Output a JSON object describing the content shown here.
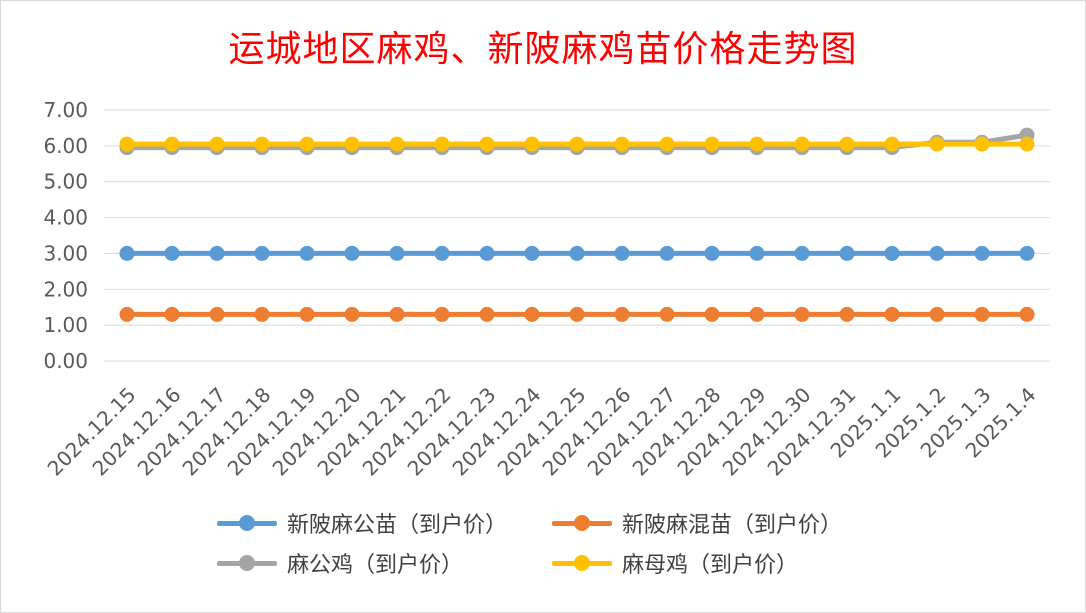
{
  "chart_data": {
    "type": "line",
    "title": "运城地区麻鸡、新陂麻鸡苗价格走势图",
    "categories": [
      "2024.12.15",
      "2024.12.16",
      "2024.12.17",
      "2024.12.18",
      "2024.12.19",
      "2024.12.20",
      "2024.12.21",
      "2024.12.22",
      "2024.12.23",
      "2024.12.24",
      "2024.12.25",
      "2024.12.26",
      "2024.12.27",
      "2024.12.28",
      "2024.12.29",
      "2024.12.30",
      "2024.12.31",
      "2025.1.1",
      "2025.1.2",
      "2025.1.3",
      "2025.1.4"
    ],
    "ylim": [
      0,
      7
    ],
    "ytick_values": [
      0,
      1,
      2,
      3,
      4,
      5,
      6,
      7
    ],
    "ytick_labels": [
      "0.00",
      "1.00",
      "2.00",
      "3.00",
      "4.00",
      "5.00",
      "6.00",
      "7.00"
    ],
    "grid": true,
    "legend_position": "bottom",
    "series": [
      {
        "name": "新陂麻公苗（到户价）",
        "color": "#5b9bd5",
        "values": [
          3,
          3,
          3,
          3,
          3,
          3,
          3,
          3,
          3,
          3,
          3,
          3,
          3,
          3,
          3,
          3,
          3,
          3,
          3,
          3,
          3
        ]
      },
      {
        "name": "新陂麻混苗（到户价）",
        "color": "#ed7d31",
        "values": [
          1.3,
          1.3,
          1.3,
          1.3,
          1.3,
          1.3,
          1.3,
          1.3,
          1.3,
          1.3,
          1.3,
          1.3,
          1.3,
          1.3,
          1.3,
          1.3,
          1.3,
          1.3,
          1.3,
          1.3,
          1.3
        ]
      },
      {
        "name": "麻公鸡（到户价）",
        "color": "#a5a5a5",
        "values": [
          5.95,
          5.95,
          5.95,
          5.95,
          5.95,
          5.95,
          5.95,
          5.95,
          5.95,
          5.95,
          5.95,
          5.95,
          5.95,
          5.95,
          5.95,
          5.95,
          5.95,
          5.95,
          6.1,
          6.1,
          6.3
        ]
      },
      {
        "name": "麻母鸡（到户价）",
        "color": "#ffc000",
        "values": [
          6.05,
          6.05,
          6.05,
          6.05,
          6.05,
          6.05,
          6.05,
          6.05,
          6.05,
          6.05,
          6.05,
          6.05,
          6.05,
          6.05,
          6.05,
          6.05,
          6.05,
          6.05,
          6.05,
          6.05,
          6.05
        ]
      }
    ]
  }
}
